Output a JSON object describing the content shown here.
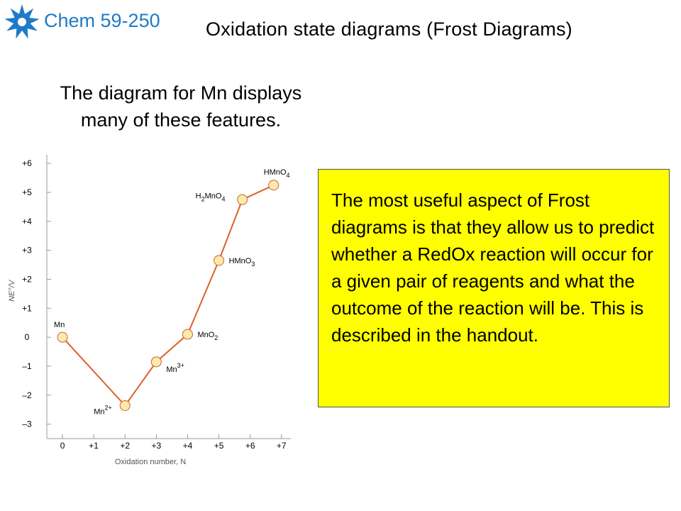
{
  "header": {
    "course": "Chem 59-250",
    "title": "Oxidation state diagrams (Frost Diagrams)"
  },
  "intro": {
    "line1": "The diagram for Mn displays",
    "line2": "many of these features."
  },
  "callout": {
    "text": "The most useful aspect of Frost diagrams is that they allow us to predict whether a RedOx reaction will occur for a given pair of reagents and what the outcome of the reaction will be. This is described in the handout."
  },
  "colors": {
    "course": "#1f7ac8",
    "logo": "#1f7ac8",
    "line": "#d9622a",
    "point_fill": "#fde9a8",
    "point_stroke": "#c8643a",
    "callout_bg": "#ffff00",
    "axis": "#999999"
  },
  "chart_data": {
    "type": "line",
    "xlabel": "Oxidation number, N",
    "ylabel": "NE°/V",
    "xlim": [
      -0.5,
      7.3
    ],
    "ylim": [
      -3.5,
      6.3
    ],
    "x_ticks": [
      {
        "value": 0,
        "label": "0"
      },
      {
        "value": 1,
        "label": "+1"
      },
      {
        "value": 2,
        "label": "+2"
      },
      {
        "value": 3,
        "label": "+3"
      },
      {
        "value": 4,
        "label": "+4"
      },
      {
        "value": 5,
        "label": "+5"
      },
      {
        "value": 6,
        "label": "+6"
      },
      {
        "value": 7,
        "label": "+7"
      }
    ],
    "y_ticks": [
      {
        "value": 6,
        "label": "+6"
      },
      {
        "value": 5,
        "label": "+5"
      },
      {
        "value": 4,
        "label": "+4"
      },
      {
        "value": 3,
        "label": "+3"
      },
      {
        "value": 2,
        "label": "+2"
      },
      {
        "value": 1,
        "label": "+1"
      },
      {
        "value": 0,
        "label": "0"
      },
      {
        "value": -1,
        "label": "–1"
      },
      {
        "value": -2,
        "label": "–2"
      },
      {
        "value": -3,
        "label": "–3"
      }
    ],
    "series": [
      {
        "points": [
          {
            "x": 0,
            "y": 0,
            "species": "Mn",
            "base": "Mn",
            "sub": "",
            "sup": "",
            "tail": "",
            "sub2": "",
            "pos": "above"
          },
          {
            "x": 2,
            "y": -2.36,
            "species": "Mn2+",
            "base": "Mn",
            "sub": "",
            "sup": "2+",
            "tail": "",
            "sub2": "",
            "pos": "left"
          },
          {
            "x": 3,
            "y": -0.85,
            "species": "Mn3+",
            "base": "Mn",
            "sub": "",
            "sup": "3+",
            "tail": "",
            "sub2": "",
            "pos": "right-below"
          },
          {
            "x": 4,
            "y": 0.1,
            "species": "MnO2",
            "base": "MnO",
            "sub": "2",
            "sup": "",
            "tail": "",
            "sub2": "",
            "pos": "right"
          },
          {
            "x": 5,
            "y": 2.65,
            "species": "HMnO3",
            "base": "HMnO",
            "sub": "3",
            "sup": "",
            "tail": "",
            "sub2": "",
            "pos": "right"
          },
          {
            "x": 5.75,
            "y": 4.75,
            "species": "H2MnO4",
            "base": "H",
            "sub": "2",
            "sup": "",
            "tail": "MnO",
            "sub2": "4",
            "pos": "left-above"
          },
          {
            "x": 6.75,
            "y": 5.25,
            "species": "HMnO4",
            "base": "HMnO",
            "sub": "4",
            "sup": "",
            "tail": "",
            "sub2": "",
            "pos": "above"
          }
        ]
      }
    ]
  }
}
